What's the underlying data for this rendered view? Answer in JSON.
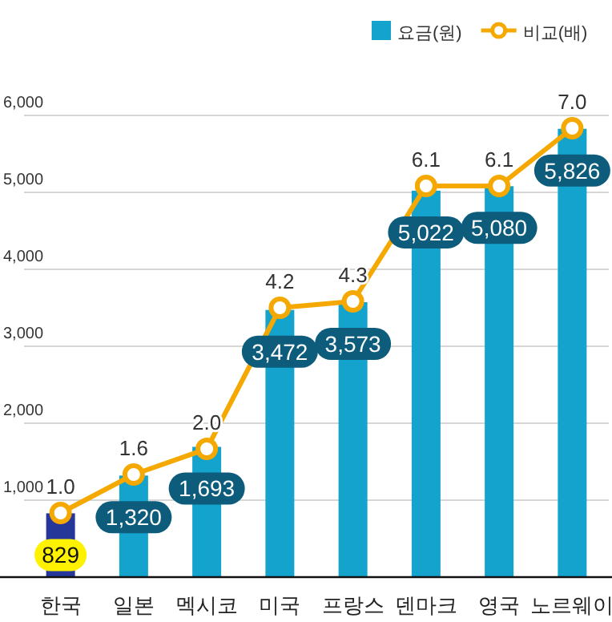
{
  "chart_data": {
    "type": "bar",
    "categories": [
      "한국",
      "일본",
      "멕시코",
      "미국",
      "프랑스",
      "덴마크",
      "영국",
      "노르웨이"
    ],
    "series": [
      {
        "name": "요금(원)",
        "color": "#13a3cc",
        "colors": [
          "#26379a",
          "#13a3cc",
          "#13a3cc",
          "#13a3cc",
          "#13a3cc",
          "#13a3cc",
          "#13a3cc",
          "#13a3cc"
        ],
        "values": [
          829,
          1320,
          1693,
          3472,
          3573,
          5022,
          5080,
          5826
        ],
        "value_labels": [
          "829",
          "1,320",
          "1,693",
          "3,472",
          "3,573",
          "5,022",
          "5,080",
          "5,826"
        ]
      },
      {
        "name": "비교(배)",
        "type": "line",
        "axis": "y2",
        "color": "#f5a800",
        "values": [
          1.0,
          1.6,
          2.0,
          4.2,
          4.3,
          6.1,
          6.1,
          7.0
        ],
        "value_labels": [
          "1.0",
          "1.6",
          "2.0",
          "4.2",
          "4.3",
          "6.1",
          "6.1",
          "7.0"
        ]
      }
    ],
    "ylim": [
      0,
      6000
    ],
    "yticks": [
      {
        "value": 1000,
        "label": "1,000"
      },
      {
        "value": 2000,
        "label": "2,000"
      },
      {
        "value": 3000,
        "label": "3,000"
      },
      {
        "value": 4000,
        "label": "4,000"
      },
      {
        "value": 5000,
        "label": "5,000"
      },
      {
        "value": 6000,
        "label": "6,000"
      }
    ],
    "y2lim": [
      0,
      7.2
    ],
    "grid": "y",
    "legend": "top right",
    "marker": "circle"
  }
}
